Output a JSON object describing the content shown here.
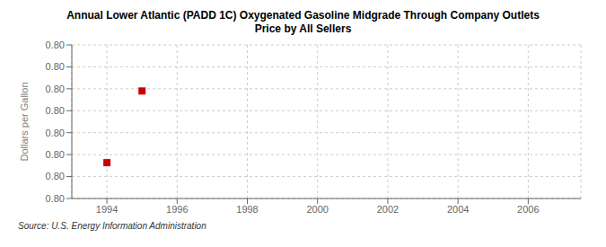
{
  "chart_data": {
    "type": "scatter",
    "title": "Annual Lower Atlantic (PADD 1C) Oxygenated Gasoline Midgrade Through Company Outlets\nPrice by All Sellers",
    "ylabel": "Dollars per Gallon",
    "source": "Source: U.S. Energy Information Administration",
    "x": [
      1994,
      1995
    ],
    "values": [
      0.7995,
      0.8009
    ],
    "color": "#cc0000",
    "marker": "square",
    "xlim": [
      1993.0,
      2007.5
    ],
    "xticks": [
      1994,
      1996,
      1998,
      2000,
      2002,
      2004,
      2006
    ],
    "ylim": [
      0.7988,
      0.8018
    ],
    "yticks": [
      {
        "value": 0.7988,
        "label": "0.80"
      },
      {
        "value": 0.7992285714285714,
        "label": "0.80"
      },
      {
        "value": 0.7996571428571428,
        "label": "0.80"
      },
      {
        "value": 0.8000857142857143,
        "label": "0.80"
      },
      {
        "value": 0.8005142857142857,
        "label": "0.80"
      },
      {
        "value": 0.8009428571428571,
        "label": "0.80"
      },
      {
        "value": 0.8013714285714286,
        "label": "0.80"
      },
      {
        "value": 0.8018,
        "label": "0.80"
      }
    ],
    "grid": true
  }
}
